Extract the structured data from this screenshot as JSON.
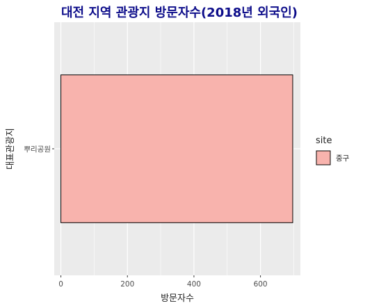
{
  "chart_data": {
    "type": "bar",
    "orientation": "horizontal",
    "title": "대전 지역 관광지 방문자수(2018년 외국인)",
    "xlabel": "방문자수",
    "ylabel": "대표관광지",
    "categories": [
      "뿌리공원"
    ],
    "series": [
      {
        "name": "중구",
        "values": [
          697
        ]
      }
    ],
    "xlim": [
      -20,
      720
    ],
    "xticks": [
      0,
      200,
      400,
      600
    ],
    "grid": true,
    "legend": {
      "title": "site",
      "position": "right",
      "entries": [
        "중구"
      ]
    },
    "colors": {
      "bar_fill": "#F8B3AD",
      "bar_stroke": "#000000",
      "panel_bg": "#EBEBEB",
      "grid": "#FFFFFF",
      "title": "#0D0D8A"
    }
  }
}
